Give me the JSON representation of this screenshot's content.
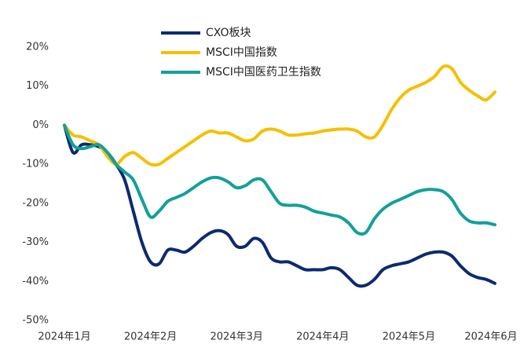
{
  "chart_data": {
    "type": "line",
    "categories": [
      "2024年1月",
      null,
      null,
      null,
      null,
      null,
      null,
      null,
      null,
      null,
      "2024年2月",
      null,
      null,
      null,
      null,
      null,
      null,
      null,
      null,
      null,
      "2024年3月",
      null,
      null,
      null,
      null,
      null,
      null,
      null,
      null,
      null,
      "2024年4月",
      null,
      null,
      null,
      null,
      null,
      null,
      null,
      null,
      null,
      "2024年5月",
      null,
      null,
      null,
      null,
      null,
      null,
      null,
      null,
      null,
      "2024年6月"
    ],
    "series": [
      {
        "name": "CXO板块",
        "color": "#0c2a6e",
        "values": [
          0,
          -7,
          -5,
          -5,
          -5.5,
          -7,
          -10,
          -14,
          -22,
          -30,
          -35,
          -35.5,
          -32,
          -32,
          -32.5,
          -31,
          -29,
          -27.5,
          -27,
          -28,
          -31,
          -31,
          -29,
          -30,
          -34,
          -35,
          -35,
          -36,
          -37,
          -37,
          -37,
          -36.5,
          -37,
          -39,
          -41,
          -41,
          -39.5,
          -37,
          -36,
          -35.5,
          -35,
          -34,
          -33,
          -32.5,
          -32.5,
          -33.5,
          -36,
          -38,
          -39,
          -39.5,
          -40.5
        ]
      },
      {
        "name": "MSCI中国指数",
        "color": "#f5c000",
        "values": [
          0,
          -2.5,
          -3,
          -4,
          -5,
          -8,
          -10,
          -8,
          -7,
          -8.5,
          -10,
          -10,
          -8.5,
          -7,
          -5.5,
          -4,
          -2.5,
          -1.5,
          -2,
          -2,
          -3,
          -4,
          -3.5,
          -1.5,
          -1,
          -1.5,
          -2.5,
          -2.5,
          -2.2,
          -2,
          -1.5,
          -1.2,
          -1,
          -1,
          -1.5,
          -3,
          -3,
          0,
          4,
          7,
          9,
          10,
          11,
          12.5,
          15,
          14.5,
          11,
          9,
          7.5,
          6.5,
          8.5
        ]
      },
      {
        "name": "MSCI中国医药卫生指数",
        "color": "#12a09a",
        "values": [
          0,
          -5,
          -6,
          -5.5,
          -5,
          -7,
          -10,
          -12,
          -14,
          -19,
          -23.5,
          -22,
          -19.5,
          -18.5,
          -17.5,
          -16,
          -14.5,
          -13.5,
          -13.5,
          -14.5,
          -16,
          -15.5,
          -14,
          -14,
          -17,
          -20,
          -20.5,
          -20.5,
          -21,
          -22,
          -22.5,
          -23,
          -23.5,
          -25,
          -27.5,
          -27.5,
          -24,
          -21.5,
          -20,
          -19,
          -18,
          -17,
          -16.5,
          -16.5,
          -17,
          -19,
          -22.5,
          -24.5,
          -25,
          -25,
          -25.5
        ]
      }
    ],
    "ylim": [
      -50,
      20
    ],
    "yticks": [
      {
        "value": -50,
        "label": "-50%"
      },
      {
        "value": -40,
        "label": "-40%"
      },
      {
        "value": -30,
        "label": "-30%"
      },
      {
        "value": -20,
        "label": "-20%"
      },
      {
        "value": -10,
        "label": "-10%"
      },
      {
        "value": 0,
        "label": "0%"
      },
      {
        "value": 10,
        "label": "10%"
      },
      {
        "value": 20,
        "label": "20%"
      }
    ],
    "grid": false,
    "legend": "top"
  }
}
